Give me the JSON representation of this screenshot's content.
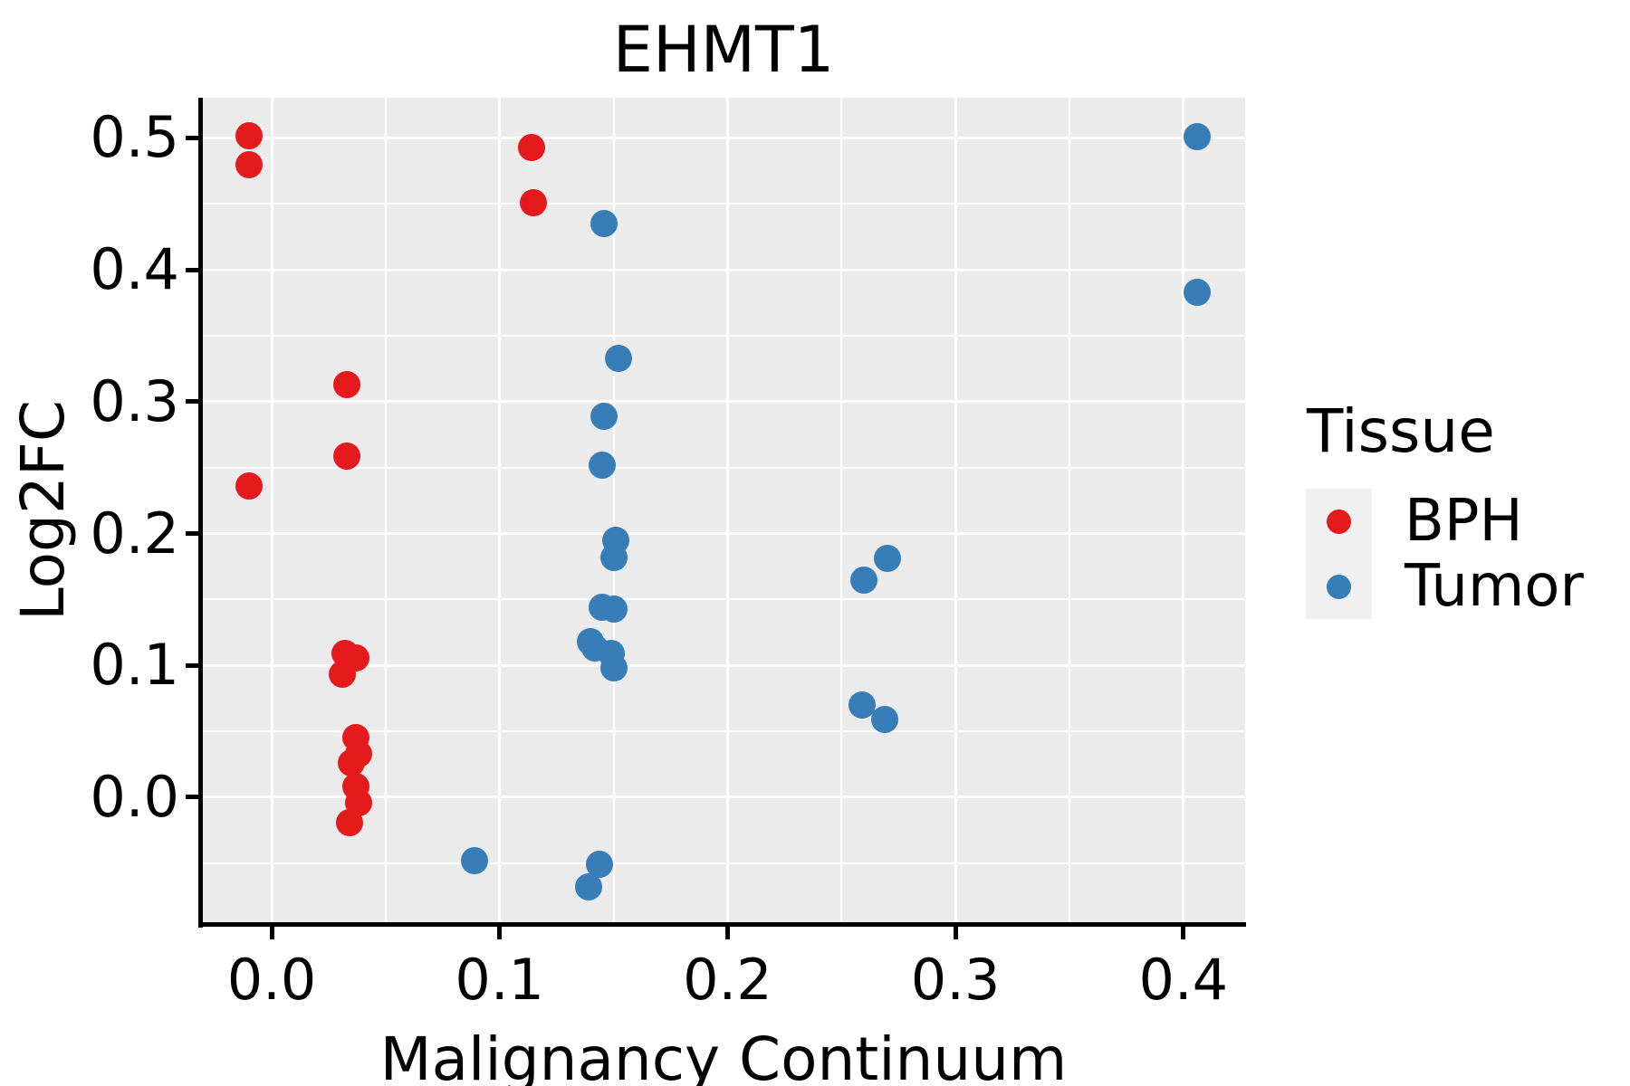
{
  "title": "EHMT1",
  "colors": {
    "bph": "#E41A1C",
    "tumor": "#377EB8",
    "panel_background": "#EBEBEB",
    "gridline": "#FFFFFF",
    "axis": "#000000",
    "legend_key_background": "#F0F0F0",
    "text": "#000000"
  },
  "legend": {
    "title": "Tissue",
    "items": [
      {
        "label": "BPH",
        "color": "#E41A1C"
      },
      {
        "label": "Tumor",
        "color": "#377EB8"
      }
    ]
  },
  "chart_data": {
    "type": "scatter",
    "title": "EHMT1",
    "xlabel": "Malignancy Continuum",
    "ylabel": "Log2FC",
    "xlim": [
      -0.0306,
      0.4271
    ],
    "ylim": [
      -0.0954,
      0.5305
    ],
    "x_ticks": [
      0.0,
      0.1,
      0.2,
      0.3,
      0.4
    ],
    "x_tick_labels": [
      "0.0",
      "0.1",
      "0.2",
      "0.3",
      "0.4"
    ],
    "y_ticks": [
      0.0,
      0.1,
      0.2,
      0.3,
      0.4,
      0.5
    ],
    "y_tick_labels": [
      "0.0",
      "0.1",
      "0.2",
      "0.3",
      "0.4",
      "0.5"
    ],
    "x_minor_ticks": [
      0.05,
      0.15,
      0.25,
      0.35
    ],
    "y_minor_ticks": [
      -0.05,
      0.05,
      0.15,
      0.25,
      0.35,
      0.45
    ],
    "grid": true,
    "legend_position": "right",
    "series": [
      {
        "name": "BPH",
        "color": "#E41A1C",
        "points": [
          [
            -0.01,
            0.502
          ],
          [
            -0.01,
            0.48
          ],
          [
            -0.01,
            0.236
          ],
          [
            0.033,
            0.313
          ],
          [
            0.033,
            0.259
          ],
          [
            0.032,
            0.109
          ],
          [
            0.037,
            0.106
          ],
          [
            0.031,
            0.093
          ],
          [
            0.037,
            0.045
          ],
          [
            0.038,
            0.033
          ],
          [
            0.035,
            0.026
          ],
          [
            0.037,
            0.008
          ],
          [
            0.038,
            -0.004
          ],
          [
            0.034,
            -0.019
          ],
          [
            0.114,
            0.493
          ],
          [
            0.115,
            0.451
          ]
        ]
      },
      {
        "name": "Tumor",
        "color": "#377EB8",
        "points": [
          [
            0.146,
            0.435
          ],
          [
            0.152,
            0.333
          ],
          [
            0.146,
            0.289
          ],
          [
            0.145,
            0.252
          ],
          [
            0.151,
            0.195
          ],
          [
            0.15,
            0.182
          ],
          [
            0.145,
            0.144
          ],
          [
            0.15,
            0.143
          ],
          [
            0.14,
            0.118
          ],
          [
            0.142,
            0.113
          ],
          [
            0.149,
            0.109
          ],
          [
            0.15,
            0.098
          ],
          [
            0.27,
            0.181
          ],
          [
            0.26,
            0.165
          ],
          [
            0.259,
            0.07
          ],
          [
            0.269,
            0.059
          ],
          [
            0.089,
            -0.048
          ],
          [
            0.144,
            -0.051
          ],
          [
            0.139,
            -0.068
          ],
          [
            0.406,
            0.501
          ],
          [
            0.406,
            0.383
          ]
        ]
      }
    ]
  }
}
